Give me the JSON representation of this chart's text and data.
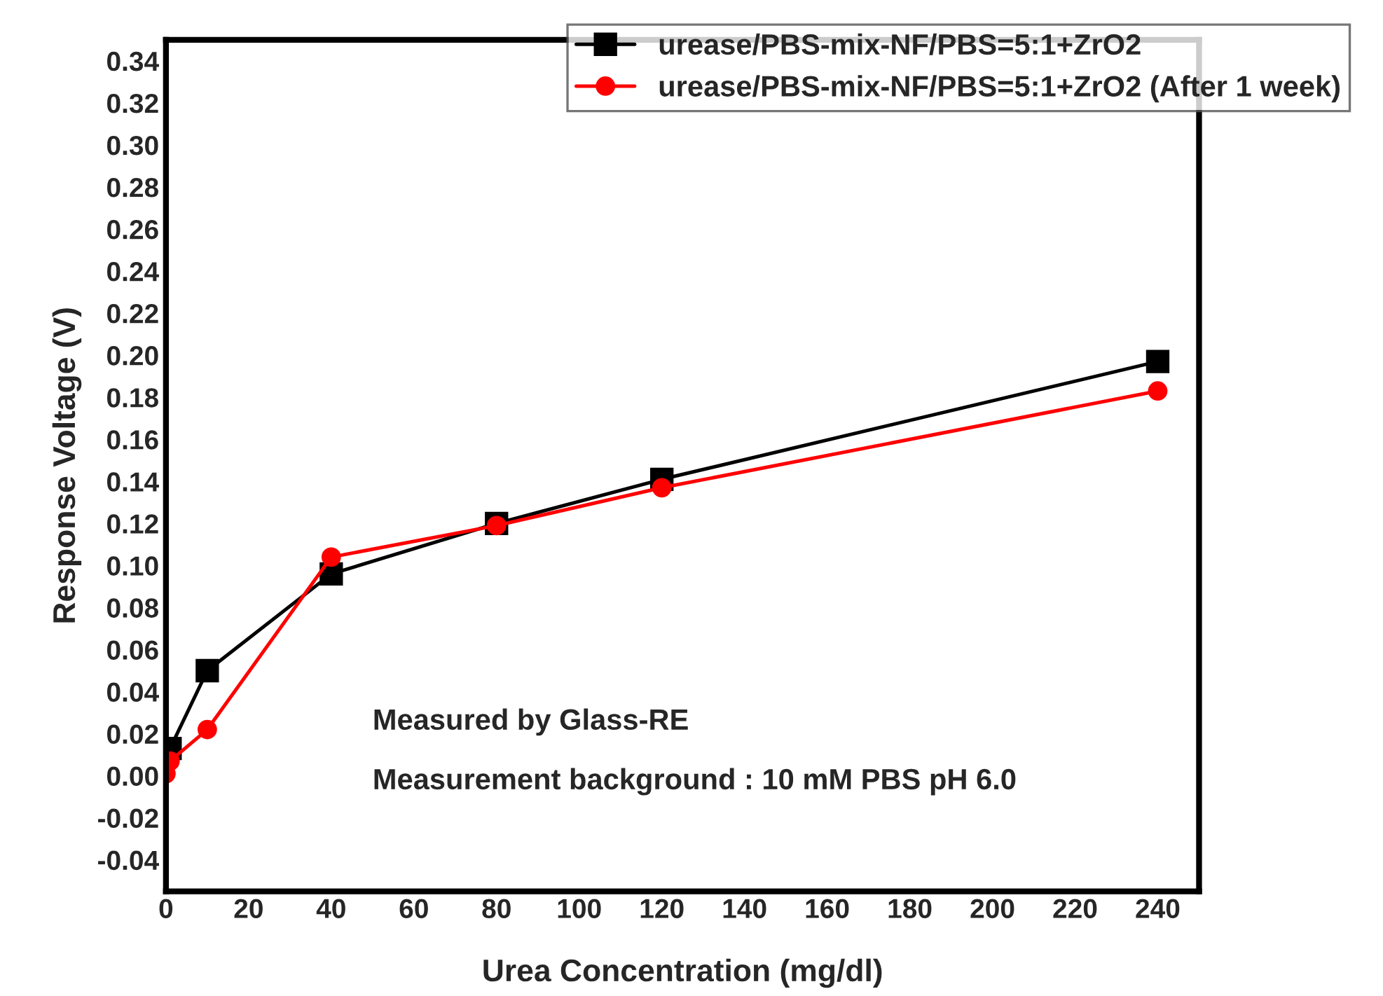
{
  "chart_data": {
    "type": "line",
    "xlabel": "Urea Concentration (mg/dl)",
    "ylabel": "Response Voltage (V)",
    "x": [
      0,
      1,
      10,
      40,
      80,
      120,
      240
    ],
    "series": [
      {
        "name": "urease/PBS-mix-NF/PBS=5:1+ZrO2",
        "color": "#000000",
        "marker": "square",
        "values": [
          null,
          0.013,
          0.05,
          0.096,
          0.12,
          0.141,
          0.197
        ]
      },
      {
        "name": "urease/PBS-mix-NF/PBS=5:1+ZrO2 (After 1 week)",
        "color": "#ff0000",
        "marker": "circle",
        "values": [
          0.001,
          0.007,
          0.022,
          0.104,
          0.119,
          0.137,
          0.183
        ]
      }
    ],
    "xlim": [
      0,
      250
    ],
    "xticks": [
      0,
      20,
      40,
      60,
      80,
      100,
      120,
      140,
      160,
      180,
      200,
      220,
      240
    ],
    "ylim": [
      -0.055,
      0.35
    ],
    "yticks": [
      {
        "value": -0.04,
        "label": "-0.04"
      },
      {
        "value": -0.02,
        "label": "-0.02"
      },
      {
        "value": 0,
        "label": "0.00"
      },
      {
        "value": 0.02,
        "label": "0.02"
      },
      {
        "value": 0.04,
        "label": "0.04"
      },
      {
        "value": 0.06,
        "label": "0.06"
      },
      {
        "value": 0.08,
        "label": "0.08"
      },
      {
        "value": 0.1,
        "label": "0.10"
      },
      {
        "value": 0.12,
        "label": "0.12"
      },
      {
        "value": 0.14,
        "label": "0.14"
      },
      {
        "value": 0.16,
        "label": "0.16"
      },
      {
        "value": 0.18,
        "label": "0.18"
      },
      {
        "value": 0.2,
        "label": "0.20"
      },
      {
        "value": 0.22,
        "label": "0.22"
      },
      {
        "value": 0.24,
        "label": "0.24"
      },
      {
        "value": 0.26,
        "label": "0.26"
      },
      {
        "value": 0.28,
        "label": "0.28"
      },
      {
        "value": 0.3,
        "label": "0.30"
      },
      {
        "value": 0.32,
        "label": "0.32"
      },
      {
        "value": 0.34,
        "label": "0.34"
      }
    ],
    "annotations": [
      "Measured by Glass-RE",
      "Measurement background : 10 mM PBS pH 6.0"
    ],
    "legend": "top right",
    "grid": false,
    "line_style": "solid"
  }
}
